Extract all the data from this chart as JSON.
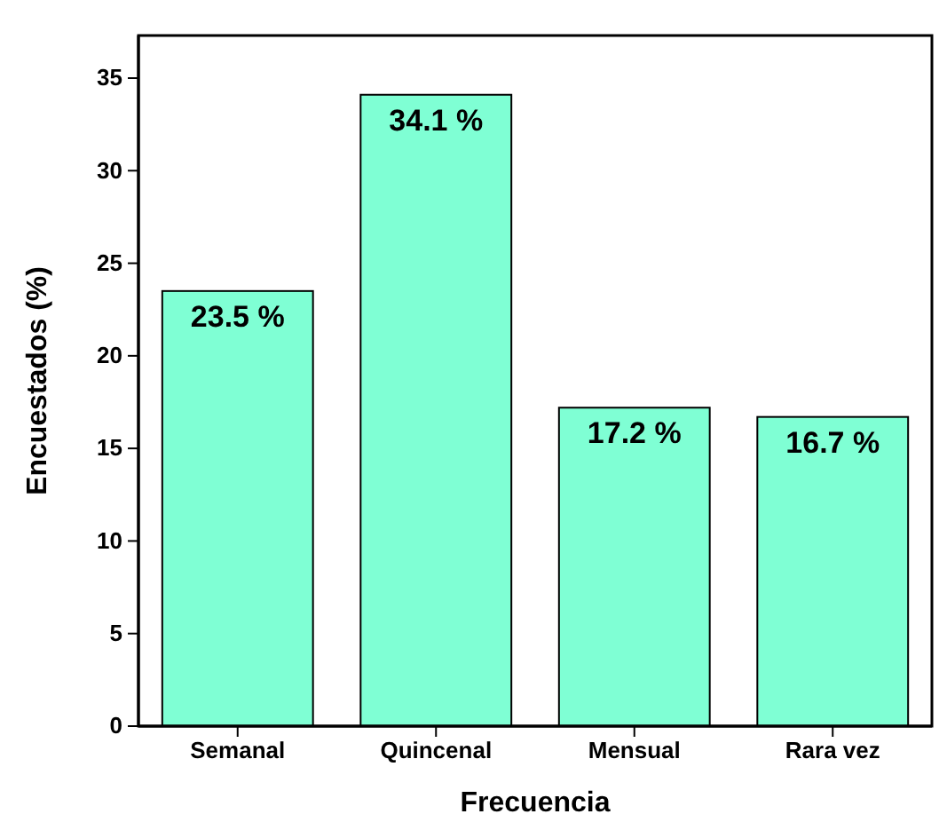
{
  "chart_data": {
    "type": "bar",
    "xlabel": "Frecuencia",
    "ylabel": "Encuestados (%)",
    "categories": [
      "Semanal",
      "Quincenal",
      "Mensual",
      "Rara vez"
    ],
    "values": [
      23.5,
      34.1,
      17.2,
      16.7
    ],
    "value_labels": [
      "23.5 %",
      "34.1 %",
      "17.2 %",
      "16.7 %"
    ],
    "color": "#7fffd4",
    "ylim": [
      0,
      37.3
    ],
    "yticks": [
      0,
      5,
      10,
      15,
      20,
      25,
      30,
      35
    ]
  }
}
